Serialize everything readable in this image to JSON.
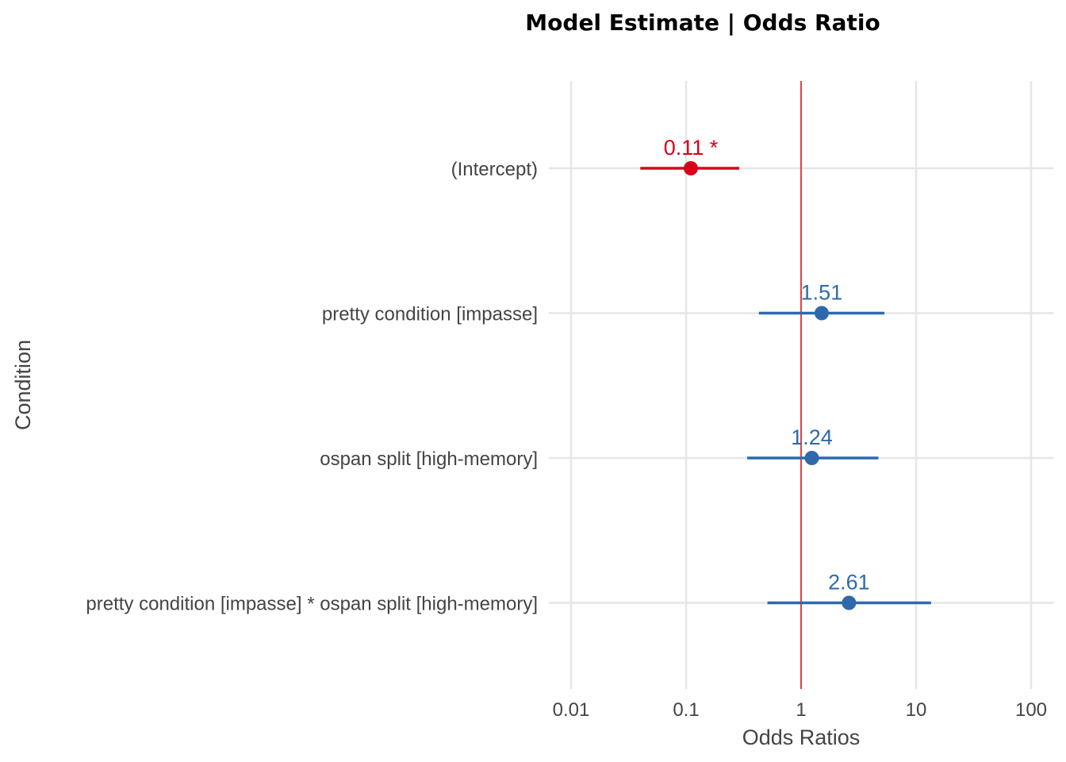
{
  "chart_data": {
    "type": "scatter",
    "title": "Model Estimate | Odds Ratio",
    "xlabel": "Odds Ratios",
    "ylabel": "Condition",
    "x_scale": "log",
    "xlim": [
      0.01,
      100
    ],
    "x_ticks": [
      "0.01",
      "0.1",
      "1",
      "10",
      "100"
    ],
    "reference_line": 1,
    "reference_color": "#e31a1c",
    "grid": true,
    "legend": "none",
    "categories": [
      "(Intercept)",
      "pretty condition [impasse]",
      "ospan split [high-memory]",
      "pretty condition [impasse] * ospan split [high-memory]"
    ],
    "estimates": [
      0.11,
      1.51,
      1.24,
      2.61
    ],
    "ci_low": [
      0.04,
      0.43,
      0.34,
      0.51
    ],
    "ci_high": [
      0.29,
      5.3,
      4.7,
      13.5
    ],
    "labels": [
      "0.11 *",
      "1.51",
      "1.24",
      "2.61"
    ],
    "colors": [
      "#d7001b",
      "#2e6aab",
      "#2e6aab",
      "#2e6aab"
    ]
  }
}
